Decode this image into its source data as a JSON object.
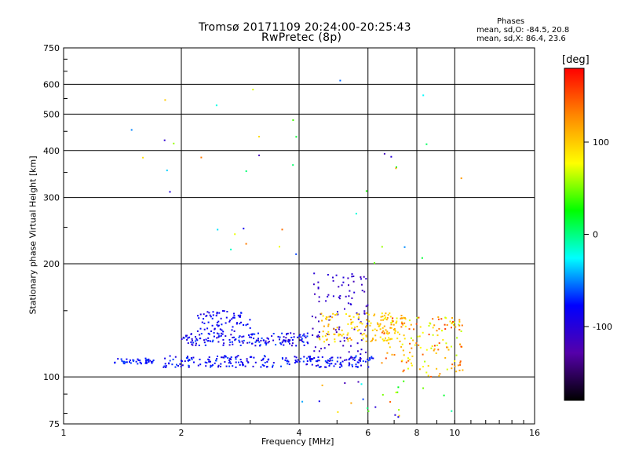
{
  "chart_data": {
    "type": "scatter",
    "title": "Tromsø 20171109 20:24:00-20:25:43",
    "subtitle": "RwPretec (8p)",
    "xlabel": "Frequency [MHz]",
    "ylabel": "Stationary phase Virtual Height [km]",
    "x_scale": "log",
    "y_scale": "log",
    "xlim": [
      1,
      16
    ],
    "ylim": [
      75,
      750
    ],
    "x_ticks": [
      "1",
      "2",
      "4",
      "6",
      "8",
      "10",
      "16"
    ],
    "y_ticks": [
      "75",
      "100",
      "200",
      "300",
      "400",
      "500",
      "600",
      "750"
    ],
    "grid": true,
    "stats": {
      "heading": "Phases",
      "line_o": "mean, sd,O: -84.5, 20.8",
      "line_x": "mean, sd,X: 86.4, 23.6"
    },
    "colorbar": {
      "label": "[deg]",
      "range": [
        -180,
        180
      ],
      "ticks": [
        "100",
        "0",
        "-100"
      ],
      "colors": [
        "#000000",
        "#5500aa",
        "#0000ff",
        "#00ffff",
        "#00ff00",
        "#ffff00",
        "#ff8800",
        "#ff0000"
      ]
    },
    "point_phase_unit": "deg",
    "groups": [
      {
        "name": "e_trace_low",
        "freq": [
          1.35,
          1.7
        ],
        "height": [
          108,
          112
        ],
        "phase": [
          -90,
          -60
        ],
        "count": 45
      },
      {
        "name": "f_trace_low",
        "freq": [
          1.8,
          6.2
        ],
        "height": [
          106,
          114
        ],
        "phase": [
          -100,
          -60
        ],
        "count": 230
      },
      {
        "name": "f_trace_mid",
        "freq": [
          2.0,
          4.3
        ],
        "height": [
          121,
          131
        ],
        "phase": [
          -110,
          -60
        ],
        "count": 170
      },
      {
        "name": "blue_cluster",
        "freq": [
          2.2,
          3.0
        ],
        "height": [
          132,
          150
        ],
        "phase": [
          -100,
          -70
        ],
        "count": 70
      },
      {
        "name": "violet_trace",
        "freq": [
          4.3,
          6.0
        ],
        "height": [
          110,
          190
        ],
        "phase": [
          -120,
          -95
        ],
        "count": 110
      },
      {
        "name": "yellow_trace",
        "freq": [
          4.5,
          7.5
        ],
        "height": [
          124,
          148
        ],
        "phase": [
          80,
          120
        ],
        "count": 150
      },
      {
        "name": "mixed_trace",
        "freq": [
          6.5,
          10.5
        ],
        "height": [
          100,
          145
        ],
        "phase": [
          60,
          160
        ],
        "count": 150
      },
      {
        "name": "low_scatter",
        "freq": [
          4.0,
          10.0
        ],
        "height": [
          78,
          98
        ],
        "phase": [
          -120,
          160
        ],
        "count": 25
      },
      {
        "name": "sparse_high",
        "freq": [
          1.3,
          11.0
        ],
        "height": [
          200,
          620
        ],
        "phase": [
          -120,
          140
        ],
        "count": 38
      }
    ]
  }
}
